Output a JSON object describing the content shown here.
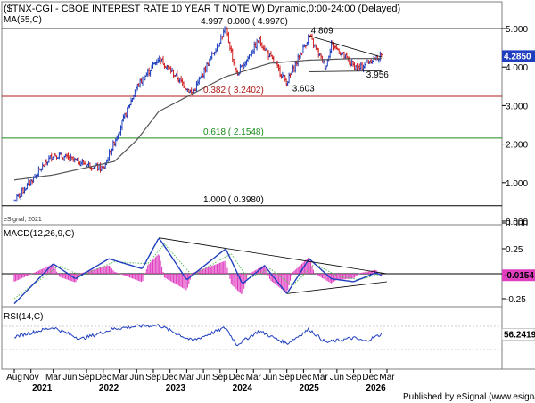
{
  "title": "($TNX-CGI - CBOE INTEREST RATE 10 YEAR T NOTE,W) Dynamic,0:00-24:00 (Delayed)",
  "ma_label": "MA(55,C)",
  "watermark": "eSignal, 2021",
  "footer": "Published by eSignal (www.esignal.com)",
  "colors": {
    "price_up": "#1f3fbf",
    "price_down": "#d02020",
    "ma_line": "#555555",
    "fib_red": "#b01818",
    "fib_green": "#1a8a1a",
    "fib_black": "#000000",
    "macd_line": "#1f3fbf",
    "signal_line": "#5bbd5b",
    "histogram": "#e040c0",
    "rsi_line": "#1f3fbf",
    "trendline": "#000000",
    "price_badge": "#1f3fbf",
    "macd_badge": "#e040c0",
    "rsi_badge": "#ffffff"
  },
  "annotations": {
    "peak_value": "4.997",
    "fib_0": "0.000 ( 4.9970)",
    "fib_382": "0.382 ( 3.2402)",
    "fib_618": "0.618 ( 2.1548)",
    "fib_100": "1.000 ( 0.3980)",
    "high_2025": "4.809",
    "low_2024": "3.603",
    "low_recent": "3.956"
  },
  "badges": {
    "price": "4.2850",
    "macd": "-0.0154",
    "rsi": "56.2419"
  },
  "chart_data": [
    {
      "type": "candlestick",
      "pane": "price",
      "title": "($TNX-CGI - CBOE INTEREST RATE 10 YEAR T NOTE,W) Dynamic,0:00-24:00 (Delayed)",
      "ylim": [
        0,
        5.2
      ],
      "yticks": [
        "0.000",
        "1.000",
        "2.000",
        "3.000",
        "4.000",
        "5.000"
      ],
      "last_price": 4.285,
      "key_points": [
        {
          "x": "2020-08",
          "y": 0.52
        },
        {
          "x": "2021-03",
          "y": 1.74
        },
        {
          "x": "2021-12",
          "y": 1.35
        },
        {
          "x": "2022-06",
          "y": 3.48
        },
        {
          "x": "2022-10",
          "y": 4.24
        },
        {
          "x": "2023-04",
          "y": 3.3
        },
        {
          "x": "2023-10",
          "y": 4.997
        },
        {
          "x": "2023-12",
          "y": 3.79
        },
        {
          "x": "2024-04",
          "y": 4.7
        },
        {
          "x": "2024-09",
          "y": 3.603
        },
        {
          "x": "2025-01",
          "y": 4.809
        },
        {
          "x": "2025-04",
          "y": 4.0
        },
        {
          "x": "2025-05",
          "y": 4.62
        },
        {
          "x": "2025-09",
          "y": 4.03
        },
        {
          "x": "2025-10",
          "y": 3.956
        },
        {
          "x": "2025-12",
          "y": 4.18
        },
        {
          "x": "2026-02",
          "y": 4.285
        }
      ],
      "moving_average": {
        "name": "MA(55,C)",
        "key_points": [
          {
            "x": "2020-08",
            "y": 1.07
          },
          {
            "x": "2021-03",
            "y": 1.2
          },
          {
            "x": "2022-02",
            "y": 1.55
          },
          {
            "x": "2022-06",
            "y": 2.1
          },
          {
            "x": "2022-10",
            "y": 2.85
          },
          {
            "x": "2023-04",
            "y": 3.3
          },
          {
            "x": "2023-10",
            "y": 3.75
          },
          {
            "x": "2024-06",
            "y": 4.1
          },
          {
            "x": "2025-01",
            "y": 4.18
          },
          {
            "x": "2025-09",
            "y": 4.22
          },
          {
            "x": "2026-02",
            "y": 4.22
          }
        ]
      },
      "fibonacci_levels": [
        {
          "ratio": "0.000",
          "value": 4.997
        },
        {
          "ratio": "0.382",
          "value": 3.2402
        },
        {
          "ratio": "0.618",
          "value": 2.1548
        },
        {
          "ratio": "1.000",
          "value": 0.398
        }
      ],
      "trendlines": [
        {
          "from": {
            "x": "2025-01",
            "y": 4.809
          },
          "to": {
            "x": "2026-02",
            "y": 4.26
          }
        },
        {
          "from": {
            "x": "2025-01",
            "y": 3.88
          },
          "to": {
            "x": "2026-02",
            "y": 3.9
          }
        }
      ]
    },
    {
      "type": "line",
      "pane": "macd",
      "label": "MACD(12,26,9,C)",
      "ylim": [
        -0.4,
        0.4
      ],
      "yticks": [
        "0.000",
        "0.25",
        "-0.25"
      ],
      "last_value": -0.0154,
      "series": [
        {
          "name": "MACD",
          "key_points": [
            {
              "x": "2020-08",
              "y": -0.3
            },
            {
              "x": "2021-03",
              "y": 0.1
            },
            {
              "x": "2021-07",
              "y": -0.05
            },
            {
              "x": "2022-01",
              "y": 0.15
            },
            {
              "x": "2022-07",
              "y": 0.05
            },
            {
              "x": "2022-10",
              "y": 0.36
            },
            {
              "x": "2023-03",
              "y": -0.06
            },
            {
              "x": "2023-10",
              "y": 0.25
            },
            {
              "x": "2024-01",
              "y": -0.1
            },
            {
              "x": "2024-05",
              "y": 0.08
            },
            {
              "x": "2024-09",
              "y": -0.2
            },
            {
              "x": "2025-01",
              "y": 0.15
            },
            {
              "x": "2025-05",
              "y": -0.05
            },
            {
              "x": "2025-09",
              "y": -0.08
            },
            {
              "x": "2026-01",
              "y": 0.01
            },
            {
              "x": "2026-02",
              "y": -0.015
            }
          ]
        },
        {
          "name": "Signal",
          "key_points": [
            {
              "x": "2020-08",
              "y": -0.25
            },
            {
              "x": "2021-04",
              "y": 0.08
            },
            {
              "x": "2021-08",
              "y": -0.02
            },
            {
              "x": "2022-02",
              "y": 0.12
            },
            {
              "x": "2022-08",
              "y": 0.1
            },
            {
              "x": "2022-11",
              "y": 0.3
            },
            {
              "x": "2023-04",
              "y": -0.02
            },
            {
              "x": "2023-11",
              "y": 0.2
            },
            {
              "x": "2024-02",
              "y": -0.05
            },
            {
              "x": "2024-06",
              "y": 0.05
            },
            {
              "x": "2024-10",
              "y": -0.12
            },
            {
              "x": "2025-02",
              "y": 0.1
            },
            {
              "x": "2025-06",
              "y": -0.02
            },
            {
              "x": "2025-10",
              "y": -0.06
            },
            {
              "x": "2026-02",
              "y": 0.0
            }
          ]
        }
      ]
    },
    {
      "type": "line",
      "pane": "rsi",
      "label": "RSI(14,C)",
      "ylim": [
        20,
        80
      ],
      "last_value": 56.2419,
      "series": [
        {
          "name": "RSI",
          "key_points": [
            {
              "x": "2020-08",
              "y": 52
            },
            {
              "x": "2021-03",
              "y": 68
            },
            {
              "x": "2021-08",
              "y": 48
            },
            {
              "x": "2022-02",
              "y": 66
            },
            {
              "x": "2022-06",
              "y": 70
            },
            {
              "x": "2022-10",
              "y": 72
            },
            {
              "x": "2023-04",
              "y": 45
            },
            {
              "x": "2023-10",
              "y": 68
            },
            {
              "x": "2023-12",
              "y": 38
            },
            {
              "x": "2024-04",
              "y": 62
            },
            {
              "x": "2024-09",
              "y": 40
            },
            {
              "x": "2025-01",
              "y": 65
            },
            {
              "x": "2025-04",
              "y": 42
            },
            {
              "x": "2025-09",
              "y": 50
            },
            {
              "x": "2025-11",
              "y": 44
            },
            {
              "x": "2026-02",
              "y": 56.24
            }
          ]
        }
      ]
    }
  ],
  "x_axis": {
    "months": [
      {
        "label": "Aug",
        "t": "2020-08"
      },
      {
        "label": "Nov",
        "t": "2020-11"
      },
      {
        "label": "Mar",
        "t": "2021-03"
      },
      {
        "label": "Jun",
        "t": "2021-06"
      },
      {
        "label": "Sep",
        "t": "2021-09"
      },
      {
        "label": "Dec",
        "t": "2021-12"
      },
      {
        "label": "Mar",
        "t": "2022-03"
      },
      {
        "label": "Jun",
        "t": "2022-06"
      },
      {
        "label": "Sep",
        "t": "2022-09"
      },
      {
        "label": "Dec",
        "t": "2022-12"
      },
      {
        "label": "Mar",
        "t": "2023-03"
      },
      {
        "label": "Jun",
        "t": "2023-06"
      },
      {
        "label": "Sep",
        "t": "2023-09"
      },
      {
        "label": "Dec",
        "t": "2023-12"
      },
      {
        "label": "Mar",
        "t": "2024-03"
      },
      {
        "label": "Jun",
        "t": "2024-06"
      },
      {
        "label": "Sep",
        "t": "2024-09"
      },
      {
        "label": "Dec",
        "t": "2024-12"
      },
      {
        "label": "Mar",
        "t": "2025-03"
      },
      {
        "label": "Jun",
        "t": "2025-06"
      },
      {
        "label": "Sep",
        "t": "2025-09"
      },
      {
        "label": "Dec",
        "t": "2025-12"
      },
      {
        "label": "Mar",
        "t": "2026-03"
      }
    ],
    "years": [
      {
        "label": "2021",
        "t": "2021-01"
      },
      {
        "label": "2022",
        "t": "2022-01"
      },
      {
        "label": "2023",
        "t": "2023-01"
      },
      {
        "label": "2024",
        "t": "2024-01"
      },
      {
        "label": "2025",
        "t": "2025-01"
      },
      {
        "label": "2026",
        "t": "2026-01"
      }
    ]
  }
}
